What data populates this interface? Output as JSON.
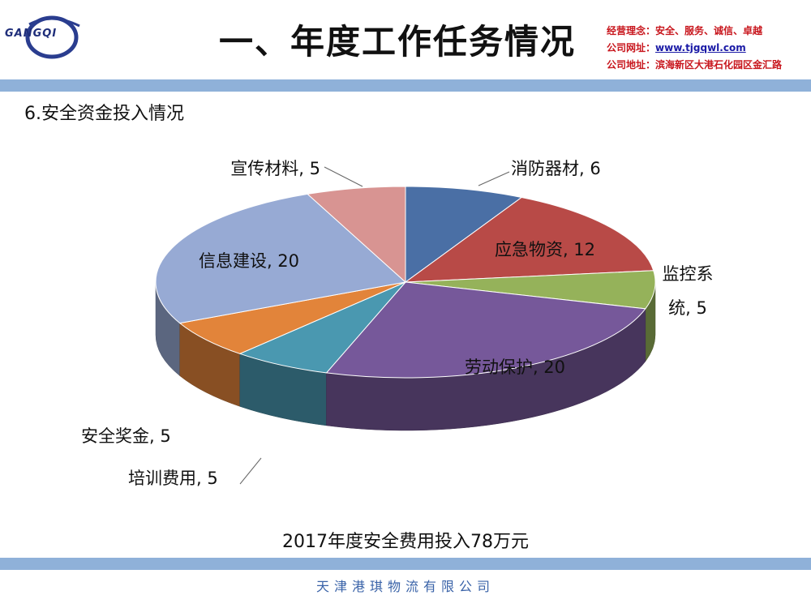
{
  "header": {
    "logo_text": "GANGQI",
    "title": "一、年度工作任务情况",
    "info": [
      {
        "label": "经营理念：",
        "value": "安全、服务、诚信、卓越"
      },
      {
        "label": "公司网址：",
        "value": "www.tjgqwl.com"
      },
      {
        "label": "公司地址：",
        "value": "滨海新区大港石化园区金汇路"
      }
    ]
  },
  "subtitle": "6.安全资金投入情况",
  "caption": "2017年度安全费用投入78万元",
  "footer": "天津港琪物流有限公司",
  "chart_data": {
    "type": "pie",
    "title": "",
    "slices": [
      {
        "label": "消防器材",
        "display": "消防器材, 6",
        "value": 6,
        "color": "#4a6fa5"
      },
      {
        "label": "应急物资",
        "display": "应急物资, 12",
        "value": 12,
        "color": "#b84a47"
      },
      {
        "label": "监控系统",
        "display": "监控系统, 5",
        "value": 5,
        "color": "#95b25a"
      },
      {
        "label": "劳动保护",
        "display": "劳动保护, 20",
        "value": 20,
        "color": "#76589a"
      },
      {
        "label": "培训费用",
        "display": "培训费用, 5",
        "value": 5,
        "color": "#4a98b0"
      },
      {
        "label": "安全奖金",
        "display": "安全奖金, 5",
        "value": 5,
        "color": "#e2843a"
      },
      {
        "label": "信息建设",
        "display": "信息建设, 20",
        "value": 20,
        "color": "#97aad4"
      },
      {
        "label": "宣传材料",
        "display": "宣传材料, 5",
        "value": 5,
        "color": "#d89492"
      }
    ]
  }
}
